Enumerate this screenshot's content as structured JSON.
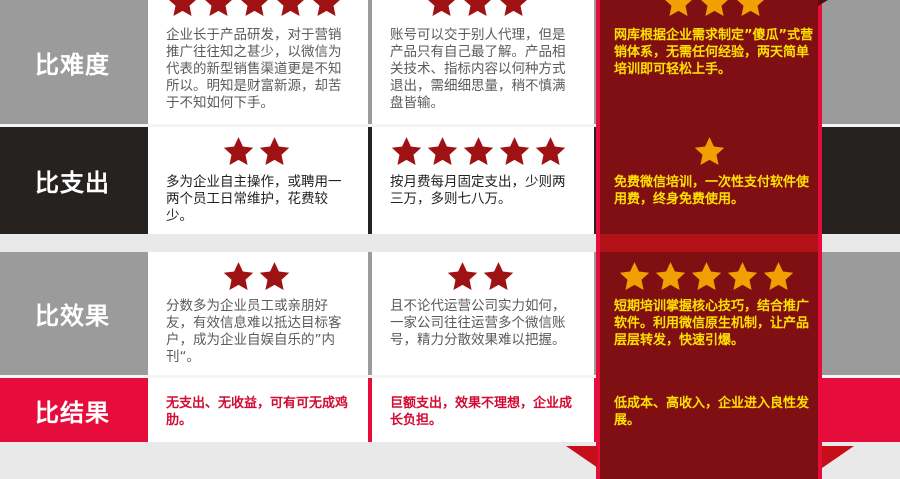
{
  "colors": {
    "gray": "#9b9b9b",
    "dark": "#252220",
    "red": "#e60d3c",
    "maroon": "#7f0f13",
    "star_dark": "#9e1214",
    "star_bright": "#f0a000",
    "highlight_text": "#ffe000"
  },
  "rows": [
    {
      "label": "比难度",
      "c1": "企业长于产品研发，对于营销推广往往知之甚少，以微信为代表的新型销售渠道更是不知所以。明知是财富新源，却苦于不知如何下手。",
      "c2": "账号可以交于别人代理，但是产品只有自己最了解。产品相关技术、指标内容以何种方式退出，需细细思量，稍不慎满盘皆输。",
      "c3": "网库根据企业需求制定”傻瓜”式营销体系，无需任何经验，两天简单培训即可轻松上手。"
    },
    {
      "label": "比支出",
      "c1": "多为企业自主操作，或聘用一两个员工日常维护，花费较少。",
      "c2": "按月费每月固定支出，少则两三万，多则七八万。",
      "c3": "免费微信培训，一次性支付软件使用费，终身免费使用。",
      "stars": [
        2,
        5,
        1
      ]
    },
    {
      "label": "比效果",
      "c1": "分数多为企业员工或亲朋好友，有效信息难以抵达目标客户，成为企业自娱自乐的”内刊“。",
      "c2": "且不论代运营公司实力如何，一家公司往往运营多个微信账号，精力分散效果难以把握。",
      "c3": "短期培训掌握核心技巧，结合推广软件。利用微信原生机制，让产品层层转发，快速引爆。",
      "stars": [
        2,
        2,
        5
      ]
    },
    {
      "label": "比结果",
      "c1": "无支出、无收益，可有可无成鸡肋。",
      "c2": "巨额支出，效果不理想，企业成长负担。",
      "c3": "低成本、高收入，企业进入良性发展。"
    }
  ]
}
